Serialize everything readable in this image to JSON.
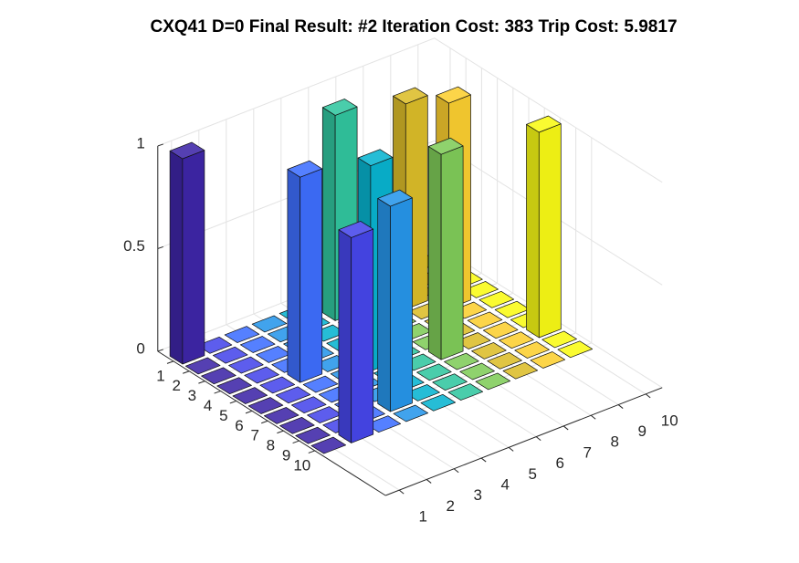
{
  "chart_data": {
    "type": "bar3",
    "title": "CXQ41 D=0 Final Result: #2 Iteration Cost: 383 Trip Cost: 5.9817",
    "values": [
      [
        1,
        0,
        0,
        0,
        0,
        0,
        0,
        0,
        0,
        0
      ],
      [
        0,
        0,
        0,
        0,
        0,
        1,
        0,
        0,
        0,
        0
      ],
      [
        0,
        0,
        0,
        0,
        0,
        0,
        0,
        1,
        0,
        0
      ],
      [
        0,
        0,
        0,
        0,
        0,
        0,
        0,
        0,
        1,
        0
      ],
      [
        0,
        0,
        1,
        0,
        0,
        0,
        0,
        0,
        0,
        0
      ],
      [
        0,
        0,
        0,
        0,
        1,
        0,
        0,
        0,
        0,
        0
      ],
      [
        0,
        0,
        0,
        0,
        0,
        0,
        1,
        0,
        0,
        0
      ],
      [
        0,
        0,
        0,
        0,
        0,
        0,
        0,
        0,
        0,
        1
      ],
      [
        0,
        0,
        0,
        1,
        0,
        0,
        0,
        0,
        0,
        0
      ],
      [
        0,
        1,
        0,
        0,
        0,
        0,
        0,
        0,
        0,
        0
      ]
    ],
    "colors": [
      "#3e26a8",
      "#4747eb",
      "#3e6fff",
      "#2796eb",
      "#08b4d0",
      "#31c69f",
      "#80cc59",
      "#dcbd29",
      "#fccf30",
      "#f9fb15"
    ],
    "xticks": [
      1,
      2,
      3,
      4,
      5,
      6,
      7,
      8,
      9,
      10
    ],
    "yticks": [
      1,
      2,
      3,
      4,
      5,
      6,
      7,
      8,
      9,
      10
    ],
    "zlim": [
      0,
      1
    ],
    "zticks": [
      0,
      0.5,
      1
    ],
    "grid": true
  }
}
